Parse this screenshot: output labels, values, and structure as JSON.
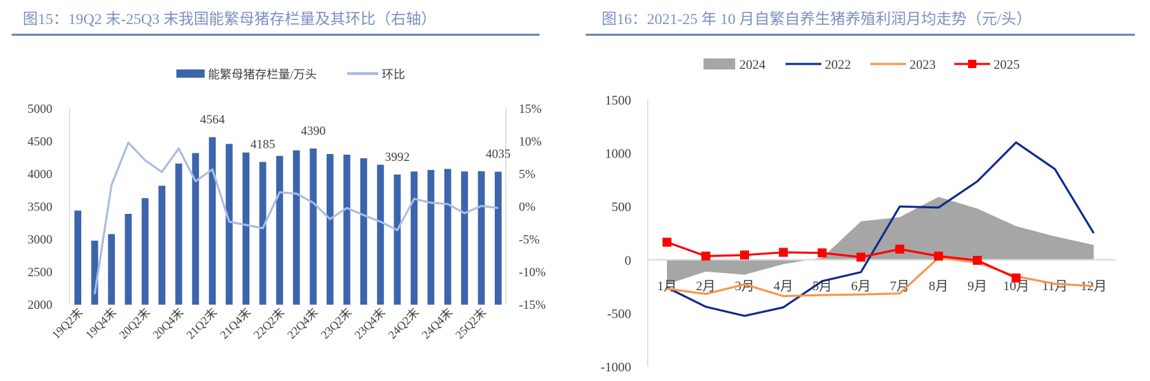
{
  "chart_data": [
    {
      "type": "bar",
      "title": "图15：19Q2 末-25Q3 末我国能繁母猪存栏量及其环比（右轴）",
      "categories": [
        "19Q2末",
        "19Q3末",
        "19Q4末",
        "20Q1末",
        "20Q2末",
        "20Q3末",
        "20Q4末",
        "21Q1末",
        "21Q2末",
        "21Q3末",
        "21Q4末",
        "22Q1末",
        "22Q2末",
        "22Q3末",
        "22Q4末",
        "23Q1末",
        "23Q2末",
        "23Q3末",
        "23Q4末",
        "24Q1末",
        "24Q2末",
        "24Q3末",
        "24Q4末",
        "25Q1末",
        "25Q2末",
        "25Q3末"
      ],
      "tick_labels": [
        "19Q2末",
        "19Q4末",
        "20Q2末",
        "20Q4末",
        "21Q2末",
        "21Q4末",
        "22Q2末",
        "22Q4末",
        "23Q2末",
        "23Q4末",
        "24Q2末",
        "24Q4末",
        "25Q2末"
      ],
      "series": [
        {
          "name": "能繁母猪存栏量/万头",
          "type": "bar",
          "axis": "left",
          "color": "#3d65ad",
          "values": [
            3440,
            2980,
            3080,
            3390,
            3630,
            3820,
            4160,
            4320,
            4564,
            4460,
            4329,
            4185,
            4277,
            4362,
            4390,
            4305,
            4296,
            4241,
            4142,
            3992,
            4038,
            4062,
            4078,
            4039,
            4042,
            4035
          ]
        },
        {
          "name": "环比",
          "type": "line",
          "axis": "right",
          "color": "#a9bce3",
          "values": [
            null,
            -13.4,
            3.3,
            9.8,
            7.1,
            5.3,
            8.9,
            3.9,
            5.7,
            -2.3,
            -2.8,
            -3.3,
            2.2,
            2.0,
            0.6,
            -1.9,
            -0.2,
            -1.3,
            -2.3,
            -3.6,
            1.2,
            0.6,
            0.4,
            -1.0,
            0.1,
            -0.2
          ]
        }
      ],
      "data_labels": [
        {
          "index": 8,
          "text": "4564"
        },
        {
          "index": 11,
          "text": "4185"
        },
        {
          "index": 14,
          "text": "4390"
        },
        {
          "index": 19,
          "text": "3992"
        },
        {
          "index": 25,
          "text": "4035"
        }
      ],
      "ylim": [
        2000,
        5000
      ],
      "yticks": [
        "2000",
        "2500",
        "3000",
        "3500",
        "4000",
        "4500",
        "5000"
      ],
      "y2lim": [
        -15,
        15
      ],
      "y2ticks": [
        "-15%",
        "-10%",
        "-5%",
        "0%",
        "5%",
        "10%",
        "15%"
      ],
      "legend": "top"
    },
    {
      "type": "line",
      "title": "图16：2021-25 年 10 月自繁自养生猪养殖利润月均走势（元/头）",
      "categories": [
        "1月",
        "2月",
        "3月",
        "4月",
        "5月",
        "6月",
        "7月",
        "8月",
        "9月",
        "10月",
        "11月",
        "12月"
      ],
      "series": [
        {
          "name": "2024",
          "type": "area",
          "color": "#a6a6a6",
          "values": [
            -230,
            -110,
            -140,
            -40,
            20,
            360,
            400,
            590,
            480,
            315,
            220,
            140
          ]
        },
        {
          "name": "2022",
          "type": "line",
          "color": "#0d2a8a",
          "values": [
            -260,
            -440,
            -525,
            -445,
            -200,
            -115,
            500,
            490,
            735,
            1100,
            850,
            250
          ]
        },
        {
          "name": "2023",
          "type": "line",
          "color": "#f5964a",
          "values": [
            -270,
            -320,
            -230,
            -340,
            -330,
            -325,
            -315,
            20,
            -25,
            -155,
            -225,
            -245
          ]
        },
        {
          "name": "2025",
          "type": "line-marker",
          "color": "#ff0000",
          "values": [
            165,
            35,
            45,
            70,
            65,
            25,
            100,
            35,
            -5,
            -170,
            null,
            null
          ]
        }
      ],
      "ylim": [
        -1000,
        1500
      ],
      "yticks": [
        "-1000",
        "-500",
        "0",
        "500",
        "1000",
        "1500"
      ],
      "legend": "top"
    }
  ]
}
